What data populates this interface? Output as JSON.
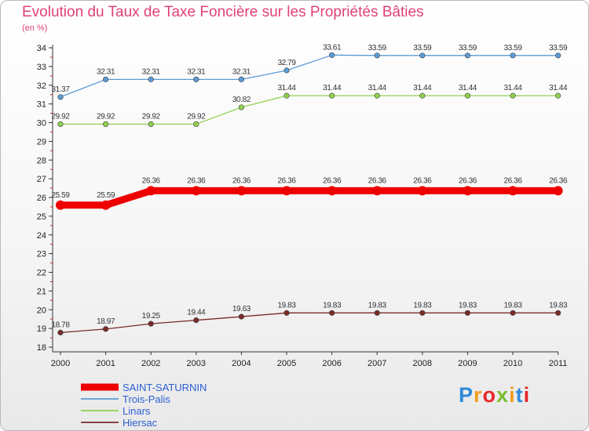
{
  "chart_data": {
    "type": "line",
    "title": "Evolution du Taux de Taxe Foncière sur les Propriétés Bâties",
    "subtitle": "(en %)",
    "xlabel": "",
    "ylabel": "",
    "x": [
      "2000",
      "2001",
      "2002",
      "2003",
      "2004",
      "2005",
      "2006",
      "2007",
      "2008",
      "2009",
      "2010",
      "2011"
    ],
    "ylim": [
      18,
      34
    ],
    "yticks": [
      "18",
      "19",
      "20",
      "21",
      "22",
      "23",
      "24",
      "25",
      "26",
      "27",
      "28",
      "29",
      "30",
      "31",
      "32",
      "33",
      "34"
    ],
    "grid": false,
    "legend_position": "bottom-left",
    "series": [
      {
        "name": "SAINT-SATURNIN",
        "color": "#ee0000",
        "values": [
          25.59,
          25.59,
          26.36,
          26.36,
          26.36,
          26.36,
          26.36,
          26.36,
          26.36,
          26.36,
          26.36,
          26.36
        ],
        "labels": [
          "25.59",
          "25.59",
          "26.36",
          "26.36",
          "26.36",
          "26.36",
          "26.36",
          "26.36",
          "26.36",
          "26.36",
          "26.36",
          "26.36"
        ]
      },
      {
        "name": "Trois-Palis",
        "color": "#5b9bd5",
        "values": [
          31.37,
          32.31,
          32.31,
          32.31,
          32.31,
          32.79,
          33.61,
          33.59,
          33.59,
          33.59,
          33.59,
          33.59
        ],
        "labels": [
          "31.37",
          "32.31",
          "32.31",
          "32.31",
          "32.31",
          "32.79",
          "33.61",
          "33.59",
          "33.59",
          "33.59",
          "33.59",
          "33.59"
        ]
      },
      {
        "name": "Linars",
        "color": "#8fd14f",
        "values": [
          29.92,
          29.92,
          29.92,
          29.92,
          30.82,
          31.44,
          31.44,
          31.44,
          31.44,
          31.44,
          31.44,
          31.44
        ],
        "labels": [
          "29.92",
          "29.92",
          "29.92",
          "29.92",
          "30.82",
          "31.44",
          "31.44",
          "31.44",
          "31.44",
          "31.44",
          "31.44",
          "31.44"
        ]
      },
      {
        "name": "Hiersac",
        "color": "#7a2a2a",
        "values": [
          18.78,
          18.97,
          19.25,
          19.44,
          19.63,
          19.83,
          19.83,
          19.83,
          19.83,
          19.83,
          19.83,
          19.83
        ],
        "labels": [
          "18.78",
          "18.97",
          "19.25",
          "19.44",
          "19.63",
          "19.83",
          "19.83",
          "19.83",
          "19.83",
          "19.83",
          "19.83",
          "19.83"
        ]
      }
    ]
  },
  "brand": {
    "letters": [
      "P",
      "r",
      "o",
      "x",
      "i",
      "t",
      "i"
    ],
    "colors": [
      "#2f8ad8",
      "#f39c1c",
      "#e8262a",
      "#7bbb2f",
      "#f39c1c",
      "#2f8ad8",
      "#e8262a"
    ]
  }
}
